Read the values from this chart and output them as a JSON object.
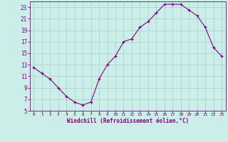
{
  "x": [
    0,
    1,
    2,
    3,
    4,
    5,
    6,
    7,
    8,
    9,
    10,
    11,
    12,
    13,
    14,
    15,
    16,
    17,
    18,
    19,
    20,
    21,
    22,
    23
  ],
  "y": [
    12.5,
    11.5,
    10.5,
    9.0,
    7.5,
    6.5,
    6.0,
    6.5,
    10.5,
    13.0,
    14.5,
    17.0,
    17.5,
    19.5,
    20.5,
    22.0,
    23.5,
    23.5,
    23.5,
    22.5,
    21.5,
    19.5,
    16.0,
    14.5
  ],
  "line_color": "#800080",
  "marker": "+",
  "bg_color": "#cceee8",
  "grid_color": "#aad4ce",
  "xlabel": "Windchill (Refroidissement éolien,°C)",
  "xlabel_color": "#800080",
  "tick_color": "#800080",
  "spine_color": "#800080",
  "xlim_min": -0.5,
  "xlim_max": 23.5,
  "ylim_min": 5,
  "ylim_max": 24,
  "yticks": [
    5,
    7,
    9,
    11,
    13,
    15,
    17,
    19,
    21,
    23
  ],
  "xticks": [
    0,
    1,
    2,
    3,
    4,
    5,
    6,
    7,
    8,
    9,
    10,
    11,
    12,
    13,
    14,
    15,
    16,
    17,
    18,
    19,
    20,
    21,
    22,
    23
  ],
  "figsize": [
    3.2,
    2.0
  ],
  "dpi": 100
}
